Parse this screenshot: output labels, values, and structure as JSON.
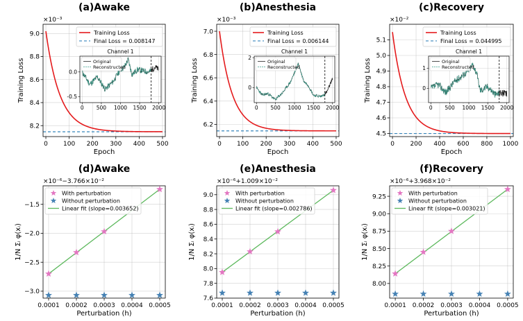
{
  "chart_data": [
    {
      "type": "line",
      "title": "(a)Awake",
      "xlabel": "Epoch",
      "ylabel": "Training Loss",
      "xlim": [
        -12,
        512
      ],
      "ylim": [
        8.105,
        9.08
      ],
      "xticks": [
        0,
        100,
        200,
        300,
        400,
        500
      ],
      "yticks": [
        8.2,
        8.4,
        8.6,
        8.8,
        9.0
      ],
      "ytick_labels": [
        "8.2",
        "8.4",
        "8.6",
        "8.8",
        "9.0"
      ],
      "offset_text": "×10⁻³",
      "series": [
        {
          "name": "Training Loss",
          "color": "#e41a1c",
          "epochs": 500,
          "start": 9.02,
          "final": 8.147,
          "tau": 60
        }
      ],
      "hline": {
        "value": 8.147,
        "color": "#1f77b4"
      },
      "legend": [
        "Training Loss",
        "Final Loss = 0.008147"
      ],
      "inset": {
        "title": "Channel 1",
        "legend": [
          "Original",
          "Reconstructed"
        ],
        "xticks": [
          0,
          500,
          1000,
          1500,
          2000
        ],
        "xlim": [
          -60,
          2060
        ],
        "yticks": [
          0.0,
          -0.5
        ],
        "ytick_labels": [
          "0.0",
          "-0.5"
        ],
        "ylim": [
          -0.62,
          0.32
        ],
        "vline": 1800,
        "seed": 11,
        "shape": [
          [
            0,
            0.0
          ],
          [
            200,
            -0.25
          ],
          [
            400,
            -0.1
          ],
          [
            600,
            -0.35
          ],
          [
            800,
            -0.2
          ],
          [
            1000,
            0.05
          ],
          [
            1100,
            0.1
          ],
          [
            1200,
            0.25
          ],
          [
            1300,
            -0.05
          ],
          [
            1450,
            0.05
          ],
          [
            1600,
            0.02
          ],
          [
            1750,
            0.0
          ],
          [
            1900,
            0.1
          ],
          [
            2000,
            0.05
          ]
        ],
        "noise": 0.06
      }
    },
    {
      "type": "line",
      "title": "(b)Anesthesia",
      "xlabel": "Epoch",
      "ylabel": "Training Loss",
      "xlim": [
        -12,
        512
      ],
      "ylim": [
        6.095,
        7.06
      ],
      "xticks": [
        0,
        100,
        200,
        300,
        400,
        500
      ],
      "yticks": [
        6.2,
        6.4,
        6.6,
        6.8,
        7.0
      ],
      "ytick_labels": [
        "6.2",
        "6.4",
        "6.6",
        "6.8",
        "7.0"
      ],
      "offset_text": "×10⁻³",
      "series": [
        {
          "name": "Training Loss",
          "color": "#e41a1c",
          "epochs": 500,
          "start": 7.0,
          "final": 6.144,
          "tau": 55
        }
      ],
      "hline": {
        "value": 6.144,
        "color": "#1f77b4"
      },
      "legend": [
        "Training Loss",
        "Final Loss = 0.006144"
      ],
      "inset": {
        "title": "Channel 1",
        "legend": [
          "Original",
          "Reconstructed"
        ],
        "xticks": [
          0,
          500,
          1000,
          1500,
          2000
        ],
        "xlim": [
          -60,
          2060
        ],
        "yticks": [
          2,
          0
        ],
        "ytick_labels": [
          "2",
          "0"
        ],
        "ylim": [
          -1.0,
          2.1
        ],
        "vline": 1800,
        "seed": 23,
        "shape": [
          [
            0,
            0.0
          ],
          [
            150,
            -0.5
          ],
          [
            300,
            -0.4
          ],
          [
            500,
            -0.8
          ],
          [
            700,
            -0.3
          ],
          [
            900,
            0.4
          ],
          [
            1100,
            1.6
          ],
          [
            1250,
            0.4
          ],
          [
            1350,
            0.2
          ],
          [
            1500,
            -0.5
          ],
          [
            1700,
            -0.6
          ],
          [
            1850,
            -0.3
          ],
          [
            2000,
            0.6
          ]
        ],
        "noise": 0.1
      }
    },
    {
      "type": "line",
      "title": "(c)Recovery",
      "xlabel": "Epoch",
      "ylabel": "Training Loss",
      "xlim": [
        -24,
        1024
      ],
      "ylim": [
        4.48,
        5.2
      ],
      "xticks": [
        0,
        200,
        400,
        600,
        800,
        1000
      ],
      "yticks": [
        4.5,
        4.6,
        4.7,
        4.8,
        4.9,
        5.0,
        5.1
      ],
      "ytick_labels": [
        "4.5",
        "4.6",
        "4.7",
        "4.8",
        "4.9",
        "5.0",
        "5.1"
      ],
      "offset_text": "×10⁻²",
      "series": [
        {
          "name": "Training Loss",
          "color": "#e41a1c",
          "epochs": 1000,
          "start": 5.15,
          "final": 4.4995,
          "tau": 110
        }
      ],
      "hline": {
        "value": 4.4995,
        "color": "#1f77b4"
      },
      "legend": [
        "Training Loss",
        "Final Loss = 0.044995"
      ],
      "inset": {
        "title": "Channel 1",
        "legend": [
          "Original",
          "Reconstructed"
        ],
        "xticks": [
          0,
          500,
          1000,
          1500,
          2000
        ],
        "xlim": [
          -60,
          2060
        ],
        "yticks": [
          1,
          0
        ],
        "ytick_labels": [
          "1",
          "0"
        ],
        "ylim": [
          -0.7,
          1.6
        ],
        "vline": 1800,
        "seed": 37,
        "shape": [
          [
            0,
            0.0
          ],
          [
            200,
            0.2
          ],
          [
            400,
            -0.2
          ],
          [
            600,
            0.3
          ],
          [
            800,
            0.6
          ],
          [
            1000,
            0.9
          ],
          [
            1100,
            1.2
          ],
          [
            1200,
            0.8
          ],
          [
            1300,
            -0.1
          ],
          [
            1500,
            0.1
          ],
          [
            1700,
            -0.3
          ],
          [
            1850,
            -0.2
          ],
          [
            2000,
            -0.3
          ]
        ],
        "noise": 0.18
      }
    },
    {
      "type": "scatter",
      "title": "(d)Awake",
      "xlabel": "Perturbation (h)",
      "ylabel": "1/N Σᵢ φ(xᵢ)",
      "offset_text": "×10⁻⁶−3.766×10⁻²",
      "x": [
        0.0001,
        0.0002,
        0.0003,
        0.0004,
        0.0005
      ],
      "xtick_labels": [
        "0.0001",
        "0.0002",
        "0.0003",
        "0.0004",
        "0.0005"
      ],
      "xlim": [
        8e-05,
        0.00052
      ],
      "ylim": [
        -3.12,
        -1.18
      ],
      "yticks": [
        -3.0,
        -2.5,
        -2.0,
        -1.5
      ],
      "ytick_labels": [
        "−3.0",
        "−2.5",
        "−2.0",
        "−1.5"
      ],
      "series": [
        {
          "name": "With perturbation",
          "color": "#e377c2",
          "x": [
            0.0001,
            0.0002,
            0.0003,
            0.0005
          ],
          "y": [
            -2.7,
            -2.33,
            -1.97,
            -1.24
          ]
        },
        {
          "name": "Without perturbation",
          "color": "#4682b4",
          "x": [
            0.0001,
            0.0002,
            0.0003,
            0.0004,
            0.0005
          ],
          "y": [
            -3.07,
            -3.07,
            -3.07,
            -3.07,
            -3.07
          ]
        }
      ],
      "fit": {
        "slope_label": "Linear fit (slope=0.003652)",
        "x0": 0.0001,
        "y0": -2.7,
        "x1": 0.0005,
        "y1": -1.24,
        "color": "#5cb85c"
      },
      "legend": [
        "With perturbation",
        "Without perturbation",
        "Linear fit (slope=0.003652)"
      ]
    },
    {
      "type": "scatter",
      "title": "(e)Anesthesia",
      "xlabel": "Perturbation (h)",
      "ylabel": "1/N Σᵢ φ(xᵢ)",
      "offset_text": "×10⁻⁶+1.009×10⁻²",
      "x": [
        0.0001,
        0.0002,
        0.0003,
        0.0004,
        0.0005
      ],
      "xtick_labels": [
        "0.0001",
        "0.0002",
        "0.0003",
        "0.0004",
        "0.0005"
      ],
      "xlim": [
        8e-05,
        0.00052
      ],
      "ylim": [
        7.6,
        9.12
      ],
      "yticks": [
        7.6,
        7.8,
        8.0,
        8.2,
        8.4,
        8.6,
        8.8,
        9.0
      ],
      "ytick_labels": [
        "7.6",
        "7.8",
        "8.0",
        "8.2",
        "8.4",
        "8.6",
        "8.8",
        "9.0"
      ],
      "series": [
        {
          "name": "With perturbation",
          "color": "#e377c2",
          "x": [
            0.0001,
            0.0002,
            0.0003,
            0.0005
          ],
          "y": [
            7.95,
            8.23,
            8.5,
            9.06
          ]
        },
        {
          "name": "Without perturbation",
          "color": "#4682b4",
          "x": [
            0.0001,
            0.0002,
            0.0003,
            0.0004,
            0.0005
          ],
          "y": [
            7.67,
            7.67,
            7.67,
            7.67,
            7.67
          ]
        }
      ],
      "fit": {
        "slope_label": "Linear fit (slope=0.002786)",
        "x0": 0.0001,
        "y0": 7.95,
        "x1": 0.0005,
        "y1": 9.06,
        "color": "#5cb85c"
      },
      "legend": [
        "With perturbation",
        "Without perturbation",
        "Linear fit (slope=0.002786)"
      ]
    },
    {
      "type": "scatter",
      "title": "(f)Recovery",
      "xlabel": "Perturbation (h)",
      "ylabel": "1/N Σᵢ φ(xᵢ)",
      "offset_text": "×10⁻⁶+3.968×10⁻²",
      "x": [
        0.0001,
        0.0002,
        0.0003,
        0.0004,
        0.0005
      ],
      "xtick_labels": [
        "0.0001",
        "0.0002",
        "0.0003",
        "0.0004",
        "0.0005"
      ],
      "xlim": [
        8e-05,
        0.00052
      ],
      "ylim": [
        7.79,
        9.4
      ],
      "yticks": [
        8.0,
        8.25,
        8.5,
        8.75,
        9.0,
        9.25
      ],
      "ytick_labels": [
        "8.00",
        "8.25",
        "8.50",
        "8.75",
        "9.00",
        "9.25"
      ],
      "series": [
        {
          "name": "With perturbation",
          "color": "#e377c2",
          "x": [
            0.0001,
            0.0002,
            0.0003,
            0.0005
          ],
          "y": [
            8.14,
            8.45,
            8.75,
            9.35
          ]
        },
        {
          "name": "Without perturbation",
          "color": "#4682b4",
          "x": [
            0.0001,
            0.0002,
            0.0003,
            0.0004,
            0.0005
          ],
          "y": [
            7.85,
            7.85,
            7.85,
            7.85,
            7.85
          ]
        }
      ],
      "fit": {
        "slope_label": "Linear fit (slope=0.003021)",
        "x0": 0.0001,
        "y0": 8.14,
        "x1": 0.0005,
        "y1": 9.35,
        "color": "#5cb85c"
      },
      "legend": [
        "With perturbation",
        "Without perturbation",
        "Linear fit (slope=0.003021)"
      ]
    }
  ]
}
